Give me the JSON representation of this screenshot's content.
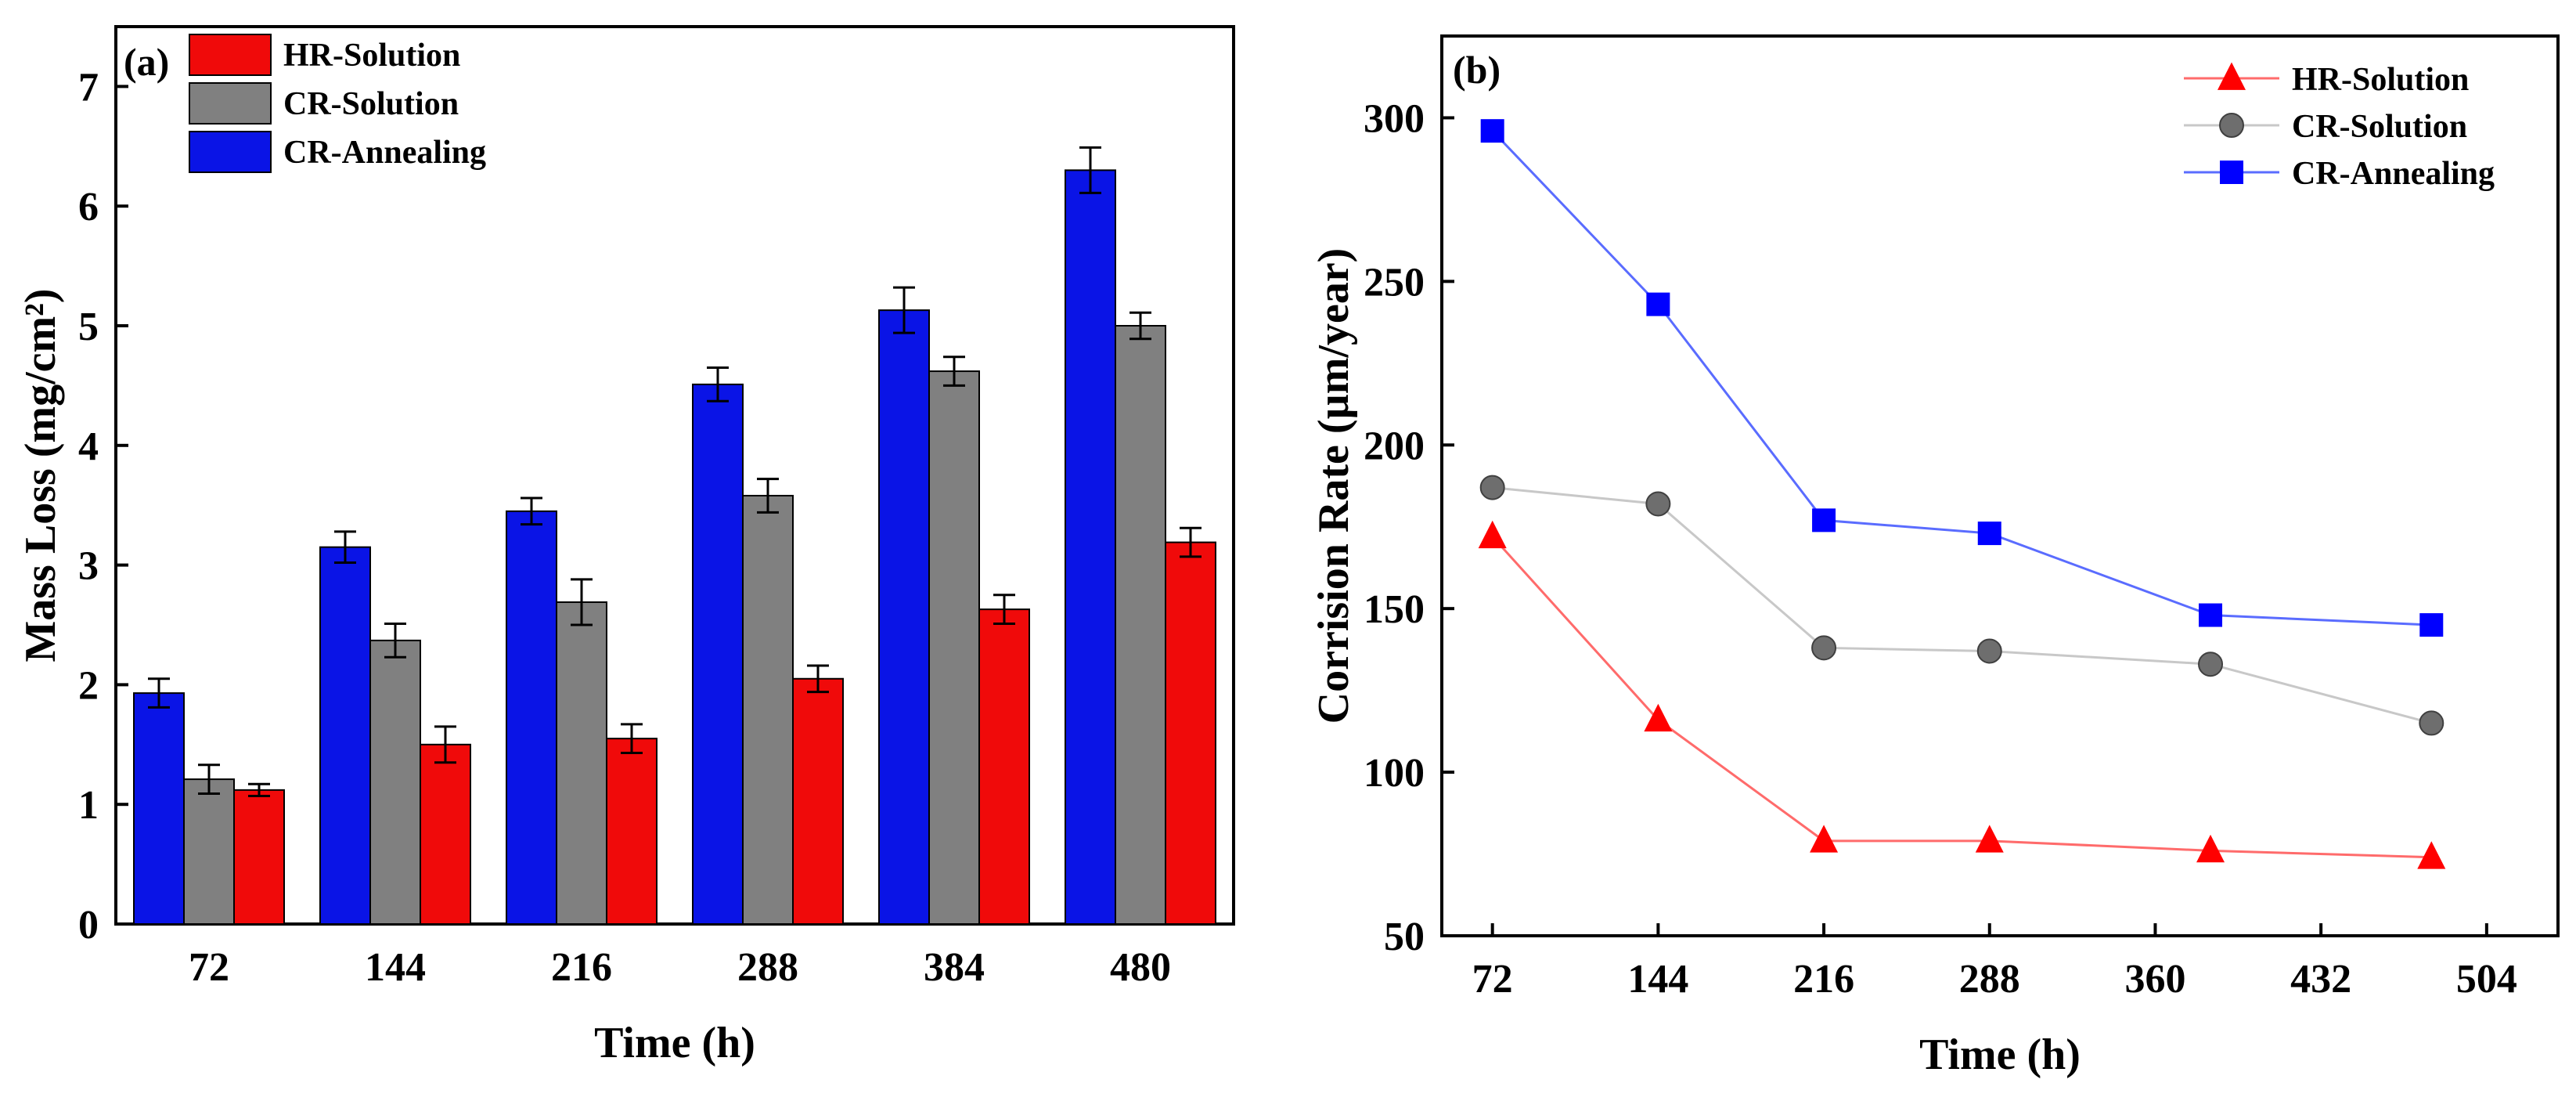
{
  "chart_data": [
    {
      "type": "bar",
      "panel_label": "(a)",
      "title": "",
      "xlabel": "Time (h)",
      "ylabel": "Mass Loss (mg/cm²)",
      "categories": [
        "72",
        "144",
        "216",
        "288",
        "384",
        "480"
      ],
      "ylim": [
        0,
        7.5
      ],
      "yticks": [
        0,
        1,
        2,
        3,
        4,
        5,
        6,
        7
      ],
      "grid": false,
      "legend_position": "top-left",
      "legend_order": [
        "HR-Solution",
        "CR-Solution",
        "CR-Annealing"
      ],
      "series": [
        {
          "name": "CR-Annealing",
          "color": "#0a14e6",
          "values": [
            1.93,
            3.15,
            3.45,
            4.51,
            5.13,
            6.3
          ],
          "errors": [
            0.12,
            0.13,
            0.11,
            0.14,
            0.19,
            0.19
          ]
        },
        {
          "name": "CR-Solution",
          "color": "#808080",
          "values": [
            1.21,
            2.37,
            2.69,
            3.58,
            4.62,
            5.0
          ],
          "errors": [
            0.12,
            0.14,
            0.19,
            0.14,
            0.12,
            0.11
          ]
        },
        {
          "name": "HR-Solution",
          "color": "#f00a0a",
          "values": [
            1.12,
            1.5,
            1.55,
            2.05,
            2.63,
            3.19
          ],
          "errors": [
            0.05,
            0.15,
            0.12,
            0.11,
            0.12,
            0.12
          ]
        }
      ]
    },
    {
      "type": "line",
      "panel_label": "(b)",
      "title": "",
      "xlabel": "Time (h)",
      "ylabel": "Corrision Rate (µm/year)",
      "xlim": [
        50,
        535
      ],
      "ylim": [
        50,
        325
      ],
      "xticks": [
        72,
        144,
        216,
        288,
        360,
        432,
        504
      ],
      "yticks": [
        50,
        100,
        150,
        200,
        250,
        300
      ],
      "grid": false,
      "legend_position": "top-right",
      "x": [
        72,
        144,
        216,
        288,
        384,
        480
      ],
      "series": [
        {
          "name": "HR-Solution",
          "marker": "triangle",
          "color": "#ff0000",
          "line_color": "#ff6b6b",
          "values": [
            172,
            116,
            79,
            79,
            76,
            74
          ]
        },
        {
          "name": "CR-Solution",
          "marker": "circle",
          "color": "#6e6e6e",
          "line_color": "#c8c8c8",
          "values": [
            187,
            182,
            138,
            137,
            133,
            115
          ]
        },
        {
          "name": "CR-Annealing",
          "marker": "square",
          "color": "#0000ff",
          "line_color": "#5a6cff",
          "values": [
            296,
            243,
            177,
            173,
            148,
            145
          ]
        }
      ]
    }
  ]
}
